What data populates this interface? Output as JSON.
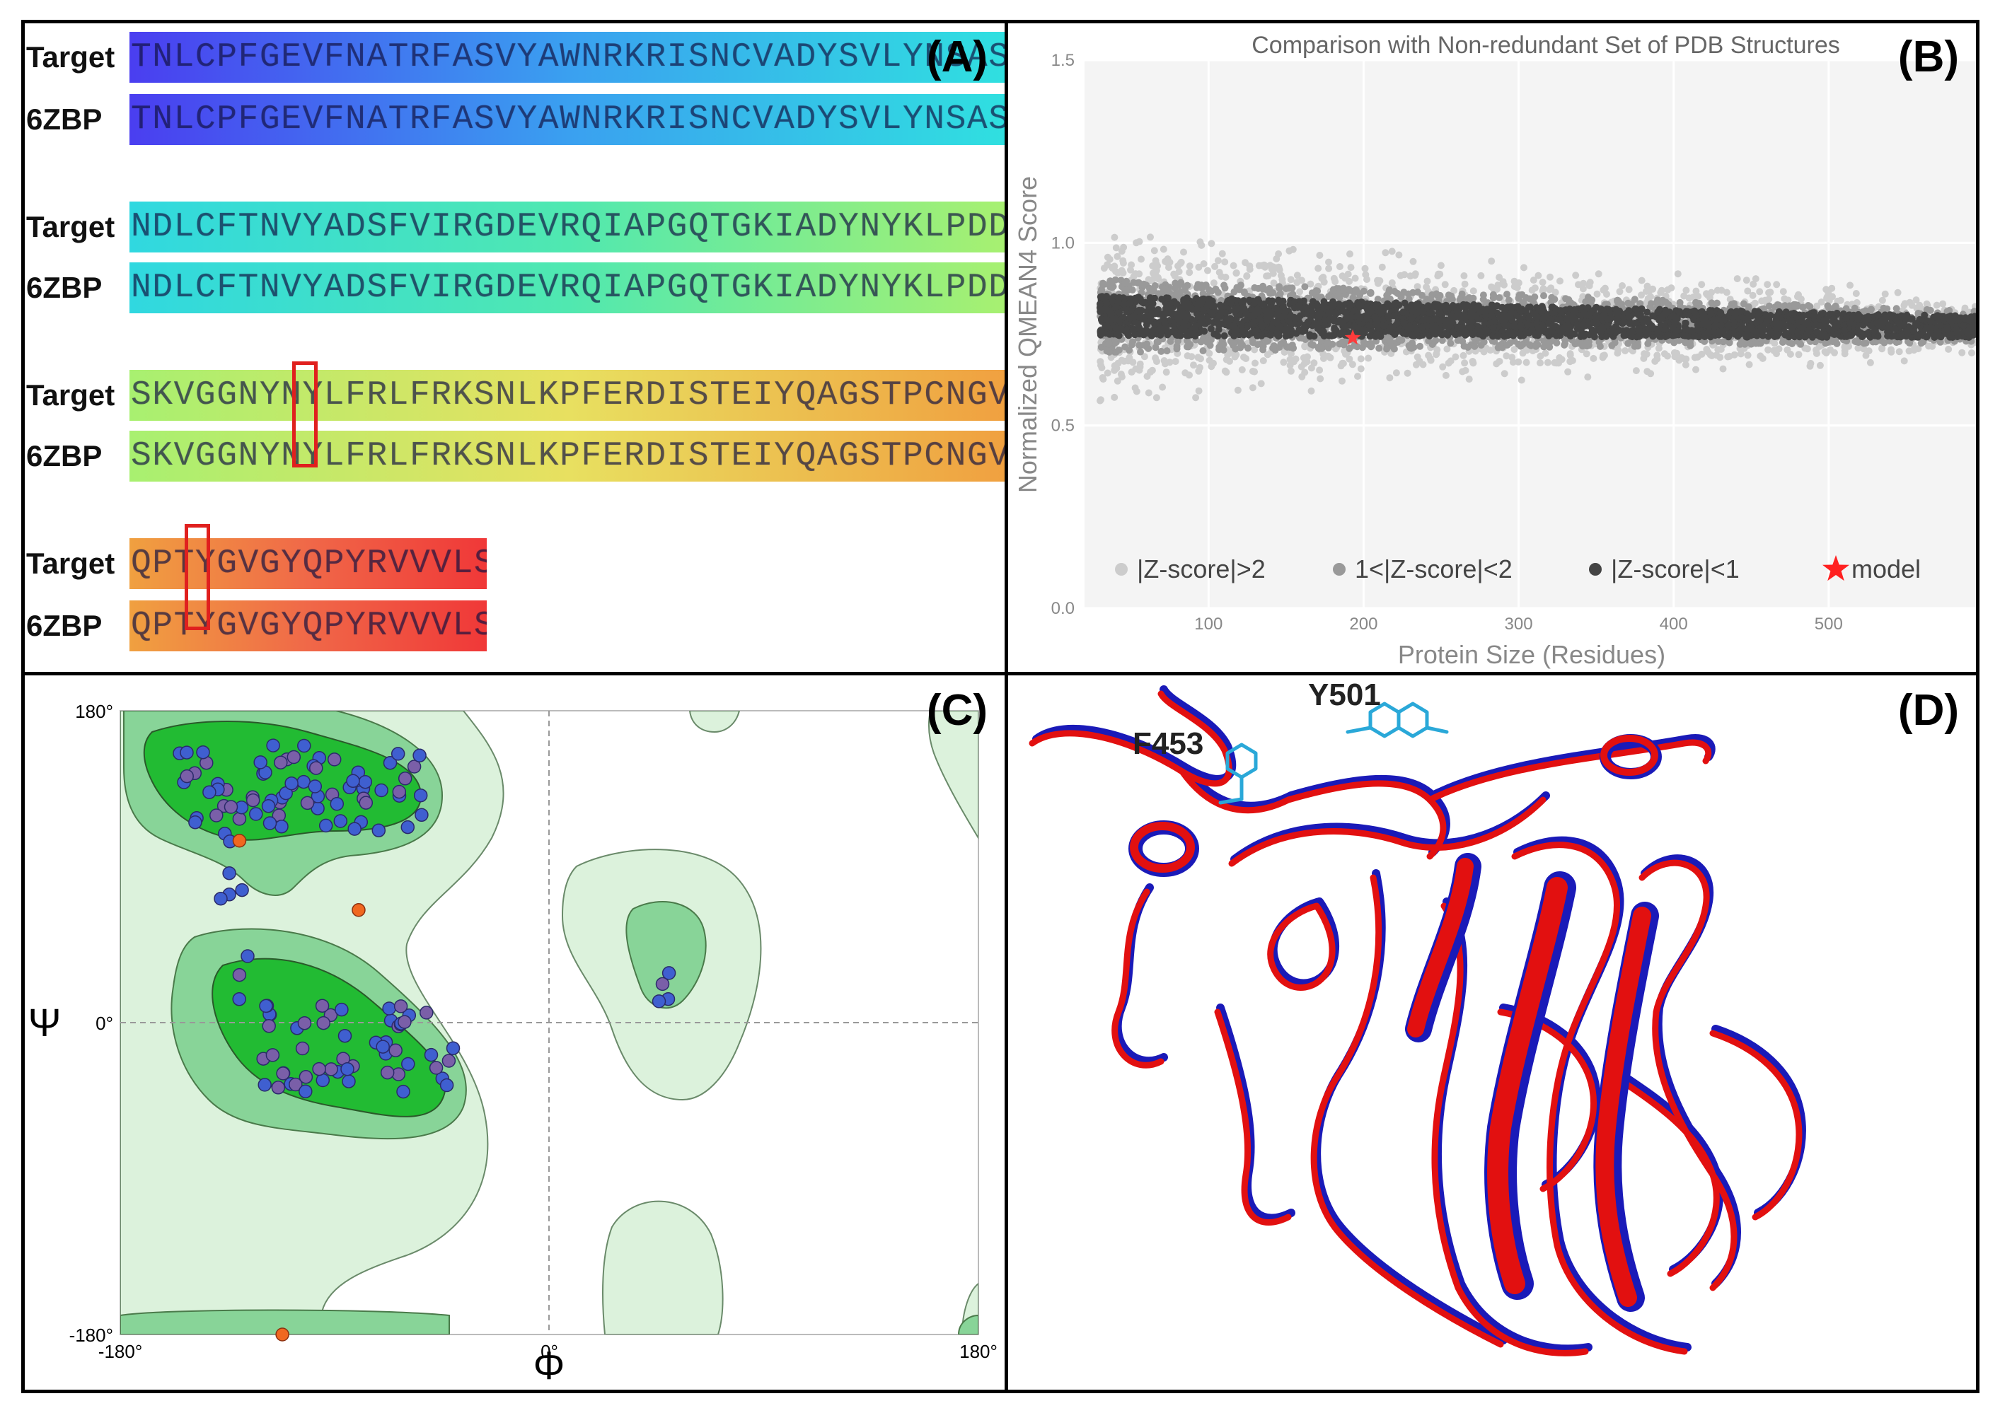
{
  "panel_labels": {
    "a": "(A)",
    "b": "(B)",
    "c": "(C)",
    "d": "(D)"
  },
  "panel_a": {
    "rows": [
      {
        "name": "Target",
        "seq": "TNLCPFGEVFNATRFASVYAWNRKRISNCVADYSVLYNSASFSTFKCYGVSPTKL",
        "colors": [
          "#4a3ef0",
          "#3aa0f0",
          "#30e0e0"
        ]
      },
      {
        "name": "6ZBP",
        "seq": "TNLCPFGEVFNATRFASVYAWNRKRISNCVADYSVLYNSASFSTFKCYGVSPTKL",
        "colors": [
          "#4a3ef0",
          "#3aa0f0",
          "#30e0e0"
        ]
      },
      {
        "name": "Target",
        "seq": "NDLCFTNVYADSFVIRGDEVRQIAPGQTGKIADYNYKLPDDFTGCVIAWNSNNLD",
        "colors": [
          "#30d8e0",
          "#50e8b0",
          "#a8f070"
        ]
      },
      {
        "name": "6ZBP",
        "seq": "NDLCFTNVYADSFVIRGDEVRQIAPGQTGKIADYNYKLPDDFTGCVIAWNSNNLD",
        "colors": [
          "#30d8e0",
          "#50e8b0",
          "#a8f070"
        ]
      },
      {
        "name": "Target",
        "seq": "SKVGGNYNYLFRLFRKSNLKPFERDISTEIYQAGSTPCNGVEGFNCYFPLQSYGF",
        "colors": [
          "#a8f070",
          "#e8e060",
          "#f0a040"
        ]
      },
      {
        "name": "6ZBP",
        "seq": "SKVGGNYNYLFRLFRKSNLKPFERDISTEIYQAGSTPCNGVEGFNCYFPLQSYGF",
        "colors": [
          "#a8f070",
          "#e8e060",
          "#f0a040"
        ]
      },
      {
        "name": "Target",
        "seq": "QPTYGVGYQPYRVVVLSFELLHAPATVCG",
        "colors": [
          "#f0a040",
          "#f06848",
          "#f03838"
        ]
      },
      {
        "name": "6ZBP",
        "seq": "QPTYGVGYQPYRVVVLSFELLHAPATVCG",
        "colors": [
          "#f0a040",
          "#f06848",
          "#f03838"
        ]
      }
    ]
  },
  "panel_b": {
    "chart_data": {
      "type": "scatter",
      "title": "Comparison with Non-redundant Set of PDB Structures",
      "xlabel": "Protein Size (Residues)",
      "ylabel": "Normalized QMEAN4 Score",
      "xticks": [
        "100",
        "200",
        "300",
        "400",
        "500"
      ],
      "yticks": [
        "0.0",
        "0.5",
        "1.0",
        "1.5"
      ],
      "xlim": [
        20,
        595
      ],
      "ylim": [
        0.0,
        1.5
      ],
      "legend": [
        {
          "label": "|Z-score|>2",
          "color": "#cccccc"
        },
        {
          "label": "1<|Z-score|<2",
          "color": "#999999"
        },
        {
          "label": "|Z-score|<1",
          "color": "#444444"
        },
        {
          "label": "model",
          "color": "#ff2020"
        }
      ],
      "model_point": {
        "x": 193,
        "y": 0.74
      },
      "band_center": {
        "x_start": 30,
        "y_start": 0.8,
        "x_end": 595,
        "y_end": 0.77
      }
    }
  },
  "panel_c": {
    "chart_data": {
      "type": "scatter",
      "title": "",
      "xlabel": "Φ",
      "ylabel": "Ψ",
      "xticks": [
        "-180°",
        "0°",
        "180°"
      ],
      "yticks": [
        "180°",
        "0°",
        "-180°"
      ],
      "xlim": [
        -180,
        180
      ],
      "ylim": [
        -180,
        180
      ],
      "outliers": [
        {
          "phi": -130,
          "psi": 105
        },
        {
          "phi": -80,
          "psi": 65
        },
        {
          "phi": -112,
          "psi": -180
        }
      ],
      "colors": {
        "favored": "#22bb33",
        "allowed": "#88d498",
        "generous": "#dcf2dc",
        "point": "#3f5fd0",
        "outlier": "#f06820"
      }
    }
  },
  "panel_d": {
    "labels": {
      "f453": "F453",
      "y501": "Y501"
    },
    "colors": {
      "model": "#e21010",
      "template": "#1a1ab8",
      "residue": "#2aa8d8"
    }
  }
}
